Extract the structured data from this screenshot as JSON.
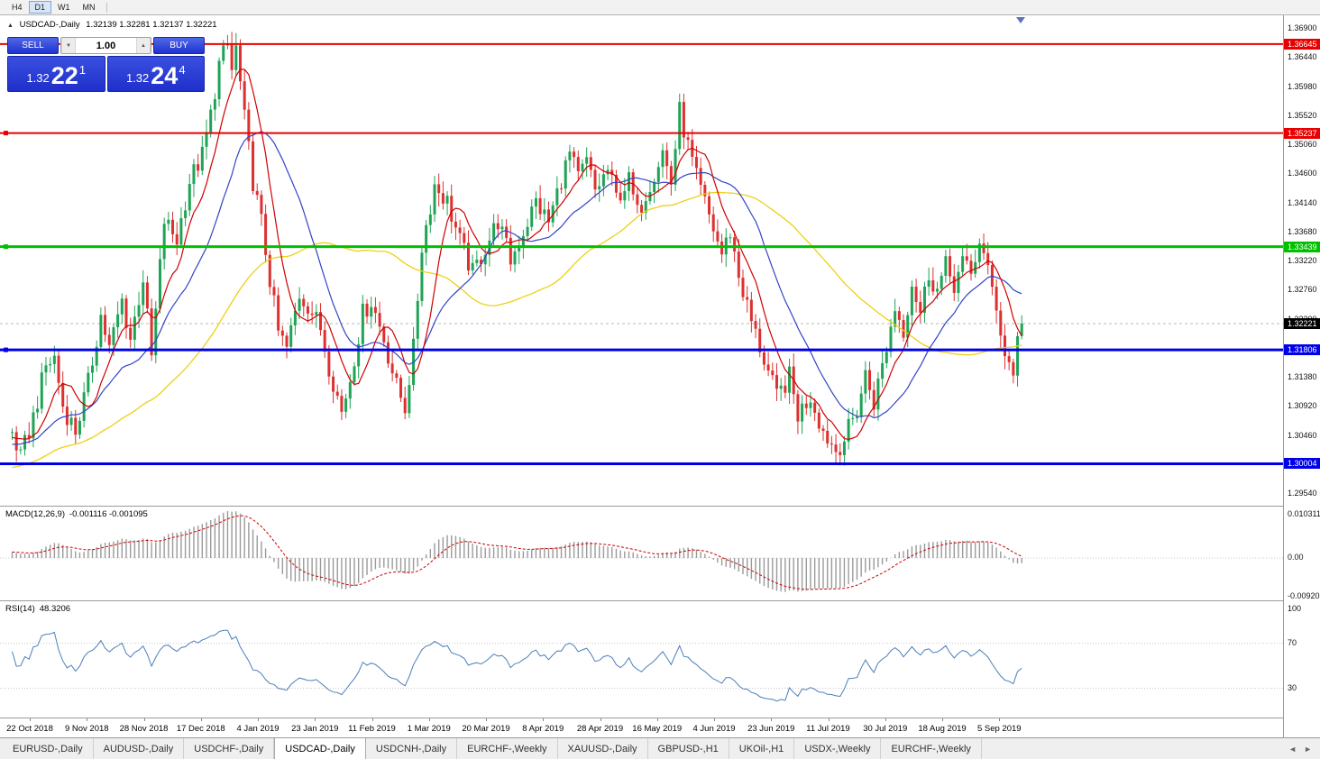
{
  "toolbar": {
    "timeframes": [
      "H4",
      "D1",
      "W1",
      "MN"
    ],
    "active_timeframe": "D1"
  },
  "icons": {
    "collapse": "▲",
    "spinner_up": "▲",
    "spinner_down": "▼",
    "tab_scroll_left": "◄",
    "tab_scroll_right": "►"
  },
  "chart": {
    "symbol_title": "USDCAD-,Daily",
    "ohlc_text": "1.32139 1.32281 1.32137 1.32221",
    "trade_panel": {
      "sell_label": "SELL",
      "buy_label": "BUY",
      "volume": "1.00",
      "sell_price": {
        "prefix": "1.32",
        "big": "22",
        "sup": "1"
      },
      "buy_price": {
        "prefix": "1.32",
        "big": "24",
        "sup": "4"
      }
    },
    "axis": {
      "ticks": [
        "1.36900",
        "1.36440",
        "1.35980",
        "1.35520",
        "1.35060",
        "1.34600",
        "1.34140",
        "1.33680",
        "1.33220",
        "1.32760",
        "1.32300",
        "1.31840",
        "1.31380",
        "1.30920",
        "1.30460",
        "1.30000",
        "1.29540"
      ]
    },
    "levels": [
      {
        "price": 1.36645,
        "label": "1.36645",
        "color": "#e80000",
        "width": 2,
        "handle": false
      },
      {
        "price": 1.35237,
        "label": "1.35237",
        "color": "#e80000",
        "width": 2,
        "handle": true
      },
      {
        "price": 1.33439,
        "label": "1.33439",
        "color": "#00c000",
        "width": 3,
        "handle": true
      },
      {
        "price": 1.31806,
        "label": "1.31806",
        "color": "#0000e8",
        "width": 3,
        "handle": true
      },
      {
        "price": 1.30004,
        "label": "1.30004",
        "color": "#0000e8",
        "width": 3,
        "handle": false
      }
    ],
    "current_price": {
      "value": 1.32221,
      "label": "1.32221",
      "box_color": "#000000"
    }
  },
  "macd": {
    "label": "MACD(12,26,9)",
    "values": "-0.001116 -0.001095",
    "axis": [
      "0.010311",
      "0.00",
      "-0.009203"
    ]
  },
  "rsi": {
    "label": "RSI(14)",
    "value": "48.3206",
    "axis": [
      "100",
      "70",
      "30"
    ],
    "levels": [
      70,
      30
    ]
  },
  "time_axis": {
    "dates": [
      "22 Oct 2018",
      "9 Nov 2018",
      "28 Nov 2018",
      "17 Dec 2018",
      "4 Jan 2019",
      "23 Jan 2019",
      "11 Feb 2019",
      "1 Mar 2019",
      "20 Mar 2019",
      "8 Apr 2019",
      "28 Apr 2019",
      "16 May 2019",
      "4 Jun 2019",
      "23 Jun 2019",
      "11 Jul 2019",
      "30 Jul 2019",
      "18 Aug 2019",
      "5 Sep 2019"
    ]
  },
  "tabs": {
    "active_index": 3,
    "items": [
      "EURUSD-,Daily",
      "AUDUSD-,Daily",
      "USDCHF-,Daily",
      "USDCAD-,Daily",
      "USDCNH-,Daily",
      "EURCHF-,Weekly",
      "XAUUSD-,Daily",
      "GBPUSD-,H1",
      "UKOil-,H1",
      "USDX-,Weekly",
      "EURCHF-,Weekly"
    ]
  },
  "colors": {
    "candle_up": "#1fa355",
    "candle_down": "#dd3030",
    "ma_fast": "#d10000",
    "ma_mid": "#3243c8",
    "ma_slow": "#eed012",
    "macd_hist": "#9a9a9a",
    "macd_signal": "#cc0000",
    "rsi_line": "#4a7ebb",
    "level_grid": "#c8c8c8"
  },
  "chart_data": {
    "type": "candlestick",
    "symbol": "USDCAD",
    "timeframe": "Daily",
    "ohlc_current": {
      "open": 1.32139,
      "high": 1.32281,
      "low": 1.32137,
      "close": 1.32221
    },
    "visible_candles": 240,
    "visible_range": {
      "start": "22 Oct 2018",
      "end": "13 Sep 2019"
    },
    "price_axis_range": [
      1.2954,
      1.369
    ],
    "horizontal_levels": [
      1.36645,
      1.35237,
      1.33439,
      1.31806,
      1.30004
    ],
    "price_waypoints": [
      [
        0,
        1.305
      ],
      [
        2,
        1.3008
      ],
      [
        5,
        1.3075
      ],
      [
        8,
        1.3155
      ],
      [
        10,
        1.3168
      ],
      [
        12,
        1.3092
      ],
      [
        15,
        1.3052
      ],
      [
        18,
        1.3128
      ],
      [
        21,
        1.3235
      ],
      [
        23,
        1.3182
      ],
      [
        26,
        1.3258
      ],
      [
        28,
        1.3198
      ],
      [
        31,
        1.3295
      ],
      [
        33,
        1.3168
      ],
      [
        36,
        1.3385
      ],
      [
        39,
        1.3355
      ],
      [
        42,
        1.3448
      ],
      [
        45,
        1.3488
      ],
      [
        47,
        1.3552
      ],
      [
        49,
        1.3632
      ],
      [
        51,
        1.3663
      ],
      [
        52,
        1.3622
      ],
      [
        53,
        1.3658
      ],
      [
        55,
        1.3545
      ],
      [
        57,
        1.3448
      ],
      [
        59,
        1.3382
      ],
      [
        61,
        1.3292
      ],
      [
        63,
        1.3208
      ],
      [
        65,
        1.3182
      ],
      [
        68,
        1.3268
      ],
      [
        70,
        1.3252
      ],
      [
        73,
        1.3215
      ],
      [
        75,
        1.3155
      ],
      [
        78,
        1.3082
      ],
      [
        80,
        1.3135
      ],
      [
        83,
        1.3238
      ],
      [
        85,
        1.3258
      ],
      [
        88,
        1.3198
      ],
      [
        91,
        1.3122
      ],
      [
        93,
        1.309
      ],
      [
        95,
        1.3182
      ],
      [
        97,
        1.3345
      ],
      [
        100,
        1.3442
      ],
      [
        103,
        1.3415
      ],
      [
        106,
        1.3352
      ],
      [
        109,
        1.3302
      ],
      [
        112,
        1.3342
      ],
      [
        115,
        1.3385
      ],
      [
        118,
        1.3322
      ],
      [
        121,
        1.3368
      ],
      [
        124,
        1.3415
      ],
      [
        127,
        1.3382
      ],
      [
        130,
        1.3452
      ],
      [
        132,
        1.349
      ],
      [
        134,
        1.3452
      ],
      [
        136,
        1.3478
      ],
      [
        138,
        1.3432
      ],
      [
        141,
        1.3465
      ],
      [
        143,
        1.3422
      ],
      [
        146,
        1.3448
      ],
      [
        148,
        1.3396
      ],
      [
        151,
        1.3445
      ],
      [
        154,
        1.3495
      ],
      [
        156,
        1.3445
      ],
      [
        158,
        1.3558
      ],
      [
        160,
        1.3502
      ],
      [
        162,
        1.3452
      ],
      [
        165,
        1.3392
      ],
      [
        168,
        1.3332
      ],
      [
        170,
        1.3368
      ],
      [
        172,
        1.3298
      ],
      [
        175,
        1.3225
      ],
      [
        178,
        1.3165
      ],
      [
        181,
        1.3105
      ],
      [
        184,
        1.3138
      ],
      [
        186,
        1.3078
      ],
      [
        189,
        1.3108
      ],
      [
        192,
        1.3052
      ],
      [
        195,
        1.3022
      ],
      [
        197,
        1.304
      ],
      [
        200,
        1.3085
      ],
      [
        202,
        1.3142
      ],
      [
        204,
        1.3098
      ],
      [
        207,
        1.3185
      ],
      [
        209,
        1.3248
      ],
      [
        211,
        1.3212
      ],
      [
        213,
        1.3288
      ],
      [
        215,
        1.324
      ],
      [
        217,
        1.3302
      ],
      [
        219,
        1.3275
      ],
      [
        221,
        1.3312
      ],
      [
        223,
        1.3285
      ],
      [
        225,
        1.3318
      ],
      [
        227,
        1.3298
      ],
      [
        229,
        1.3355
      ],
      [
        231,
        1.3302
      ],
      [
        233,
        1.3252
      ],
      [
        235,
        1.3172
      ],
      [
        237,
        1.3148
      ],
      [
        238,
        1.3195
      ],
      [
        239,
        1.32221
      ]
    ],
    "indicators": [
      {
        "name": "MA",
        "periods": [
          8,
          20,
          55
        ]
      },
      {
        "name": "MACD",
        "params": [
          12,
          26,
          9
        ],
        "current": [
          -0.001116,
          -0.001095
        ],
        "range": [
          -0.009203,
          0.010311
        ]
      },
      {
        "name": "RSI",
        "period": 14,
        "current": 48.3206,
        "levels": [
          70,
          30
        ]
      }
    ]
  }
}
